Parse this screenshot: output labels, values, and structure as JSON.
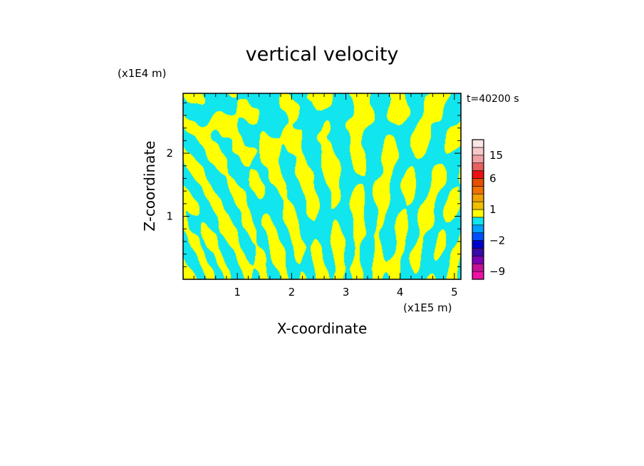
{
  "chart_data": {
    "type": "heatmap",
    "title": "vertical velocity",
    "xlabel": "X-coordinate",
    "ylabel": "Z-coordinate",
    "x_unit_label": "(x1E5 m)",
    "y_unit_label": "(x1E4 m)",
    "time_label": "t=40200 s",
    "xlim": [
      0,
      5.12
    ],
    "ylim": [
      0,
      2.95
    ],
    "x_ticks": [
      1,
      2,
      3,
      4,
      5
    ],
    "y_ticks": [
      1,
      2
    ],
    "x_minor_step": 0.2,
    "y_minor_step": 0.2,
    "field_colors": {
      "negative": "#11e5ee",
      "positive": "#ffff00"
    },
    "colorbar": {
      "bins": [
        {
          "lo": -12,
          "hi": -9,
          "color": "#ee11a6"
        },
        {
          "lo": -9,
          "hi": -6,
          "color": "#c4119a"
        },
        {
          "lo": -6,
          "hi": -4,
          "color": "#7c00b4"
        },
        {
          "lo": -4,
          "hi": -3,
          "color": "#3a0aa8"
        },
        {
          "lo": -3,
          "hi": -2,
          "color": "#0000cc"
        },
        {
          "lo": -2,
          "hi": -1.5,
          "color": "#0050ff"
        },
        {
          "lo": -1.5,
          "hi": -1,
          "color": "#00a0ff"
        },
        {
          "lo": -1,
          "hi": 0,
          "color": "#11e5ee"
        },
        {
          "lo": 0,
          "hi": 1,
          "color": "#ffff00"
        },
        {
          "lo": 1,
          "hi": 1.5,
          "color": "#f0c000"
        },
        {
          "lo": 1.5,
          "hi": 2,
          "color": "#f0a000"
        },
        {
          "lo": 2,
          "hi": 4,
          "color": "#f07000"
        },
        {
          "lo": 4,
          "hi": 6,
          "color": "#e55000"
        },
        {
          "lo": 6,
          "hi": 9,
          "color": "#ee1111"
        },
        {
          "lo": 9,
          "hi": 12,
          "color": "#e86060"
        },
        {
          "lo": 12,
          "hi": 15,
          "color": "#f0a0a0"
        },
        {
          "lo": 15,
          "hi": 20,
          "color": "#f6c8c8"
        },
        {
          "lo": 20,
          "hi": 25,
          "color": "#fbe6e6"
        }
      ],
      "tick_labels": [
        "15",
        "6",
        "1",
        "−2",
        "−9"
      ],
      "tick_values": [
        15,
        6,
        1,
        -2,
        -9
      ]
    }
  }
}
